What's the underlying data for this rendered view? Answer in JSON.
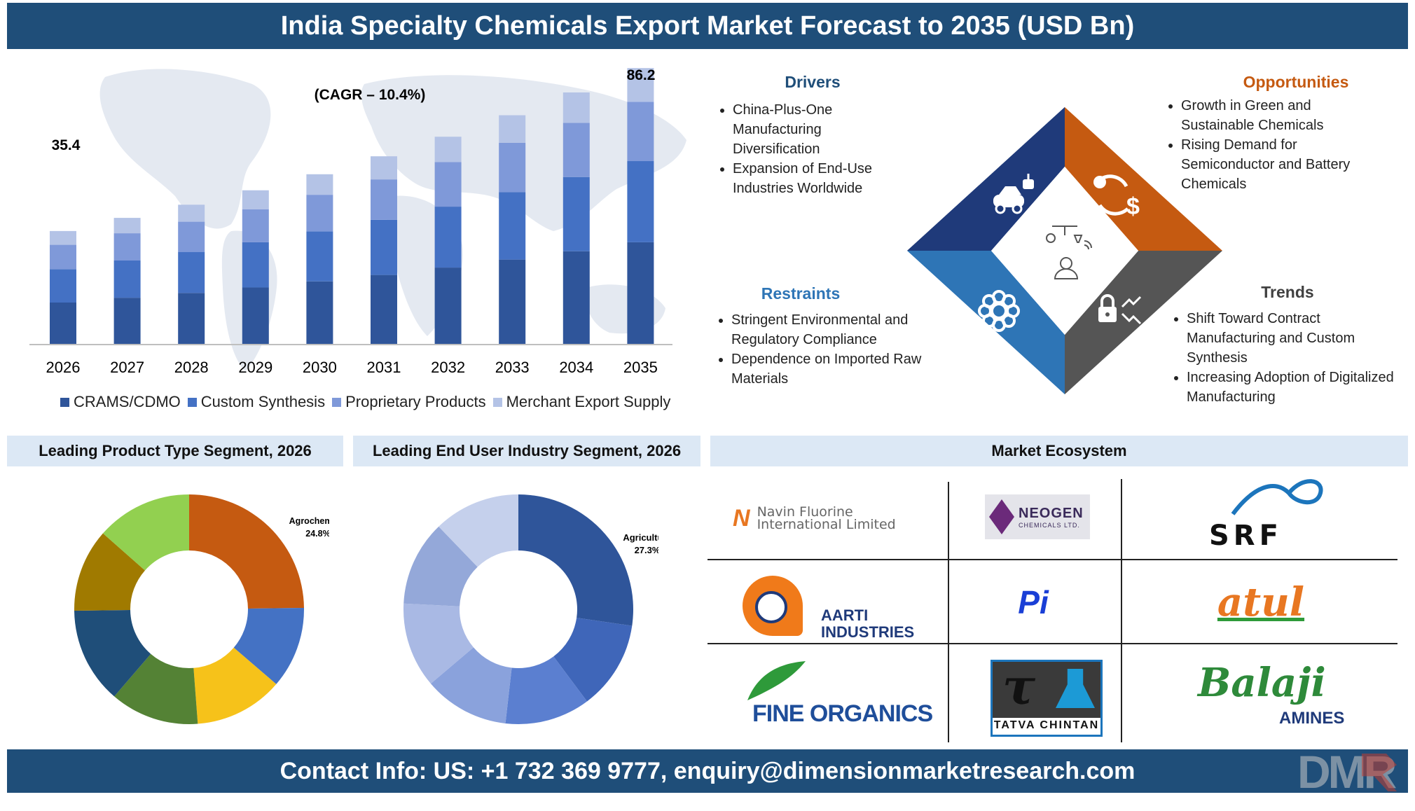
{
  "header": {
    "title": "India Specialty Chemicals Export Market Forecast to 2035 (USD Bn)"
  },
  "footer": {
    "contact": "Contact Info: US: +1 732 369 9777, enquiry@dimensionmarketresearch.com",
    "logo_text": "DMR"
  },
  "chart_data": [
    {
      "type": "bar",
      "stacked": true,
      "categories": [
        "2026",
        "2027",
        "2028",
        "2029",
        "2030",
        "2031",
        "2032",
        "2033",
        "2034",
        "2035"
      ],
      "totals": [
        35.4,
        39.5,
        43.6,
        48.1,
        53.1,
        58.7,
        64.8,
        71.5,
        78.6,
        86.2
      ],
      "series": [
        {
          "name": "CRAMS/CDMO",
          "values": [
            13.1,
            14.6,
            16.1,
            17.8,
            19.7,
            21.7,
            24.0,
            26.5,
            29.1,
            31.9
          ],
          "color": "#2f559a"
        },
        {
          "name": "Custom Synthesis",
          "values": [
            10.4,
            11.6,
            12.8,
            14.1,
            15.6,
            17.2,
            19.0,
            21.0,
            23.1,
            25.3
          ],
          "color": "#4471c4"
        },
        {
          "name": "Proprietary Products",
          "values": [
            7.6,
            8.5,
            9.4,
            10.3,
            11.4,
            12.6,
            13.9,
            15.4,
            16.9,
            18.5
          ],
          "color": "#7f99d9"
        },
        {
          "name": "Merchant Export Supply",
          "values": [
            4.3,
            4.8,
            5.3,
            5.9,
            6.4,
            7.2,
            7.9,
            8.6,
            9.5,
            10.5
          ],
          "color": "#b4c3e6"
        }
      ],
      "data_labels": {
        "first": "35.4",
        "last": "86.2"
      },
      "annotation": "(CAGR – 10.4%)",
      "legend_position": "bottom",
      "grid": false
    },
    {
      "type": "pie",
      "donut": true,
      "title": "Leading Product Type Segment, 2026",
      "slices": [
        {
          "value": 24.8,
          "color": "#c55a11"
        },
        {
          "value": 11.5,
          "color": "#4472c4"
        },
        {
          "value": 12.5,
          "color": "#f6c21a"
        },
        {
          "value": 12.5,
          "color": "#548235"
        },
        {
          "value": 13.5,
          "color": "#1f4e79"
        },
        {
          "value": 11.7,
          "color": "#a07a00"
        },
        {
          "value": 13.5,
          "color": "#92d050"
        }
      ],
      "label": {
        "name": "Agrochemical",
        "value": "24.8%"
      }
    },
    {
      "type": "pie",
      "donut": true,
      "title": "Leading End User Industry Segment, 2026",
      "slices": [
        {
          "value": 27.3,
          "color": "#2f559a"
        },
        {
          "value": 12.5,
          "color": "#3f66b9"
        },
        {
          "value": 12.0,
          "color": "#5b7fd0"
        },
        {
          "value": 12.0,
          "color": "#8aa2dc"
        },
        {
          "value": 12.0,
          "color": "#a9b9e4"
        },
        {
          "value": 12.0,
          "color": "#94a8d9"
        },
        {
          "value": 12.2,
          "color": "#c5d0ec"
        }
      ],
      "label": {
        "name": "Agriculture",
        "value": "27.3%"
      }
    }
  ],
  "drivers": {
    "title": "Drivers",
    "items": [
      "China-Plus-One Manufacturing Diversification",
      "Expansion of End-Use Industries Worldwide"
    ],
    "color": "#1f4e79"
  },
  "opportunities": {
    "title": "Opportunities",
    "items": [
      "Growth in Green and Sustainable Chemicals",
      "Rising Demand for Semiconductor and Battery Chemicals"
    ],
    "color": "#c55a11"
  },
  "restraints": {
    "title": "Restraints",
    "items": [
      "Stringent Environmental and Regulatory Compliance",
      "Dependence on Imported Raw Materials"
    ],
    "color": "#2e75b6"
  },
  "trends": {
    "title": "Trends",
    "items": [
      "Shift Toward Contract Manufacturing and Custom Synthesis",
      "Increasing Adoption of Digitalized Manufacturing"
    ],
    "color": "#404040"
  },
  "diamond": {
    "colors": {
      "top_left": "#1f3a7a",
      "top_right": "#c55a11",
      "bottom_left": "#2e75b6",
      "bottom_right": "#555555"
    },
    "icons": [
      "robot-car-icon",
      "dollar-cycle-icon",
      "gear-flower-icon",
      "lock-arrows-icon",
      "lab-person-icon"
    ]
  },
  "ecosystem": {
    "title": "Market Ecosystem",
    "companies": [
      {
        "line1": "Navin Fluorine",
        "line2": "International Limited"
      },
      {
        "line1": "NEOGEN",
        "line2": "CHEMICALS LTD."
      },
      {
        "line1": "SRF"
      },
      {
        "line1": "AARTI",
        "line2": "INDUSTRIES"
      },
      {
        "line1": "Pi"
      },
      {
        "line1": "atul"
      },
      {
        "line1": "FINE ORGANICS"
      },
      {
        "line1": "TATVA CHINTAN"
      },
      {
        "line1": "Balaji",
        "line2": "AMINES"
      }
    ]
  }
}
